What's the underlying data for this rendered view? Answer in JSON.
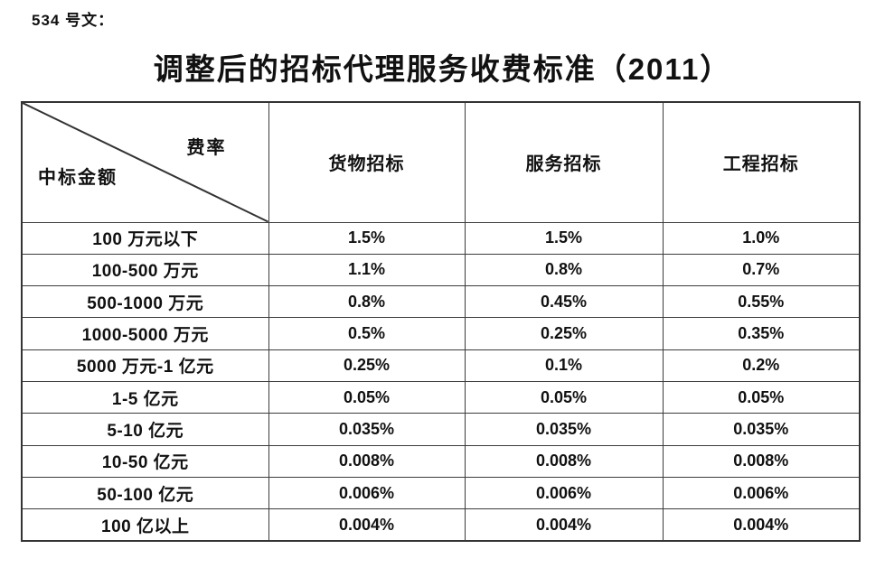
{
  "page": {
    "doc_number": "534 号文：",
    "title": "调整后的招标代理服务收费标准（2011）"
  },
  "table": {
    "corner": {
      "top_right": "费率",
      "bottom_left": "中标金额"
    },
    "columns": [
      "货物招标",
      "服务招标",
      "工程招标"
    ],
    "rows": [
      {
        "label": "100 万元以下",
        "values": [
          "1.5%",
          "1.5%",
          "1.0%"
        ]
      },
      {
        "label": "100-500 万元",
        "values": [
          "1.1%",
          "0.8%",
          "0.7%"
        ]
      },
      {
        "label": "500-1000 万元",
        "values": [
          "0.8%",
          "0.45%",
          "0.55%"
        ]
      },
      {
        "label": "1000-5000 万元",
        "values": [
          "0.5%",
          "0.25%",
          "0.35%"
        ]
      },
      {
        "label": "5000 万元-1 亿元",
        "values": [
          "0.25%",
          "0.1%",
          "0.2%"
        ]
      },
      {
        "label": "1-5 亿元",
        "values": [
          "0.05%",
          "0.05%",
          "0.05%"
        ]
      },
      {
        "label": "5-10 亿元",
        "values": [
          "0.035%",
          "0.035%",
          "0.035%"
        ]
      },
      {
        "label": "10-50 亿元",
        "values": [
          "0.008%",
          "0.008%",
          "0.008%"
        ]
      },
      {
        "label": "50-100 亿元",
        "values": [
          "0.006%",
          "0.006%",
          "0.006%"
        ]
      },
      {
        "label": "100 亿以上",
        "values": [
          "0.004%",
          "0.004%",
          "0.004%"
        ]
      }
    ]
  },
  "colors": {
    "text": "#111111",
    "border": "#3c3c3c",
    "background": "#ffffff"
  }
}
